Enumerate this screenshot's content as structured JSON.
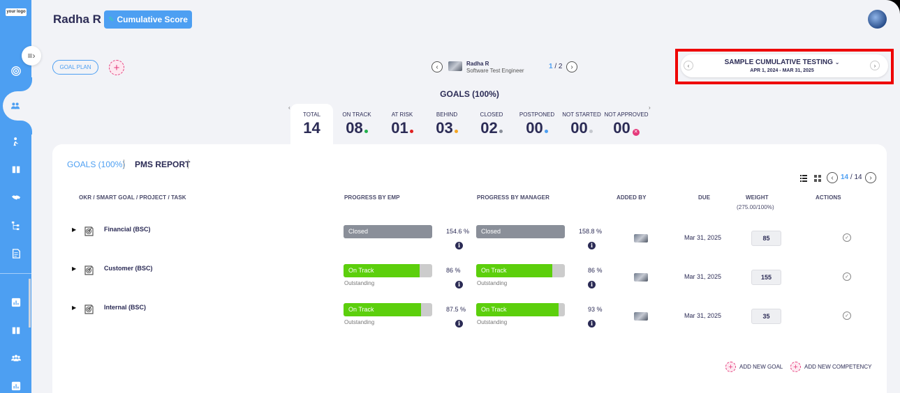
{
  "logo_text": "your logo",
  "header": {
    "user_name": "Radha R",
    "cumulative_button": "Cumulative Score"
  },
  "toolbar": {
    "goal_plan": "GOAL PLAN",
    "add_symbol": "+"
  },
  "employee": {
    "name": "Radha R",
    "role": "Software Test Engineer",
    "page_current": "1",
    "page_sep": " / ",
    "page_total": "2"
  },
  "period": {
    "title": "SAMPLE CUMULATIVE TESTING",
    "range": "APR 1, 2024 - MAR 31, 2025"
  },
  "summary": {
    "title": "GOALS (100%)",
    "stats": [
      {
        "label": "TOTAL",
        "value": "14",
        "dot": ""
      },
      {
        "label": "ON TRACK",
        "value": "08",
        "dot": "#22b14c"
      },
      {
        "label": "AT RISK",
        "value": "01",
        "dot": "#e02020"
      },
      {
        "label": "BEHIND",
        "value": "03",
        "dot": "#f5a623"
      },
      {
        "label": "CLOSED",
        "value": "02",
        "dot": "#8a8f99"
      },
      {
        "label": "POSTPONED",
        "value": "00",
        "dot": "#4d9ff2"
      },
      {
        "label": "NOT STARTED",
        "value": "00",
        "dot": "#c5c8ce"
      },
      {
        "label": "NOT APPROVED",
        "value": "00",
        "dot": "#e5397a"
      }
    ]
  },
  "tabs": {
    "goals": "GOALS (100%)",
    "pms": "PMS REPORT"
  },
  "pagination": {
    "current": "14",
    "sep": " / ",
    "total": "14"
  },
  "table": {
    "headers": {
      "goal": "OKR / SMART GOAL / PROJECT / TASK",
      "emp": "PROGRESS BY EMP",
      "mgr": "PROGRESS BY MANAGER",
      "added": "ADDED BY",
      "due": "DUE",
      "weight": "WEIGHT",
      "weight_sub": "(275.00/100%)",
      "actions": "ACTIONS"
    },
    "rows": [
      {
        "name": "Financial (BSC)",
        "emp_status": "Closed",
        "emp_fill": 1.0,
        "emp_color": "#8a8f99",
        "emp_sub": "",
        "emp_pct": "154.6  %",
        "mgr_status": "Closed",
        "mgr_fill": 1.0,
        "mgr_color": "#8a8f99",
        "mgr_sub": "",
        "mgr_pct": "158.8  %",
        "due": "Mar 31, 2025",
        "weight": "85"
      },
      {
        "name": "Customer (BSC)",
        "emp_status": "On Track",
        "emp_fill": 0.86,
        "emp_color": "#5ccf0c",
        "emp_sub": "Outstanding",
        "emp_pct": "86  %",
        "mgr_status": "On Track",
        "mgr_fill": 0.86,
        "mgr_color": "#5ccf0c",
        "mgr_sub": "Outstanding",
        "mgr_pct": "86  %",
        "due": "Mar 31, 2025",
        "weight": "155"
      },
      {
        "name": "Internal (BSC)",
        "emp_status": "On Track",
        "emp_fill": 0.875,
        "emp_color": "#5ccf0c",
        "emp_sub": "Outstanding",
        "emp_pct": "87.5  %",
        "mgr_status": "On Track",
        "mgr_fill": 0.93,
        "mgr_color": "#5ccf0c",
        "mgr_sub": "Outstanding",
        "mgr_pct": "93  %",
        "due": "Mar 31, 2025",
        "weight": "35"
      }
    ]
  },
  "footer": {
    "add_goal": "ADD NEW GOAL",
    "add_competency": "ADD NEW COMPETENCY"
  },
  "icons": {
    "info": "i",
    "check": "✓",
    "expand": "▶"
  }
}
